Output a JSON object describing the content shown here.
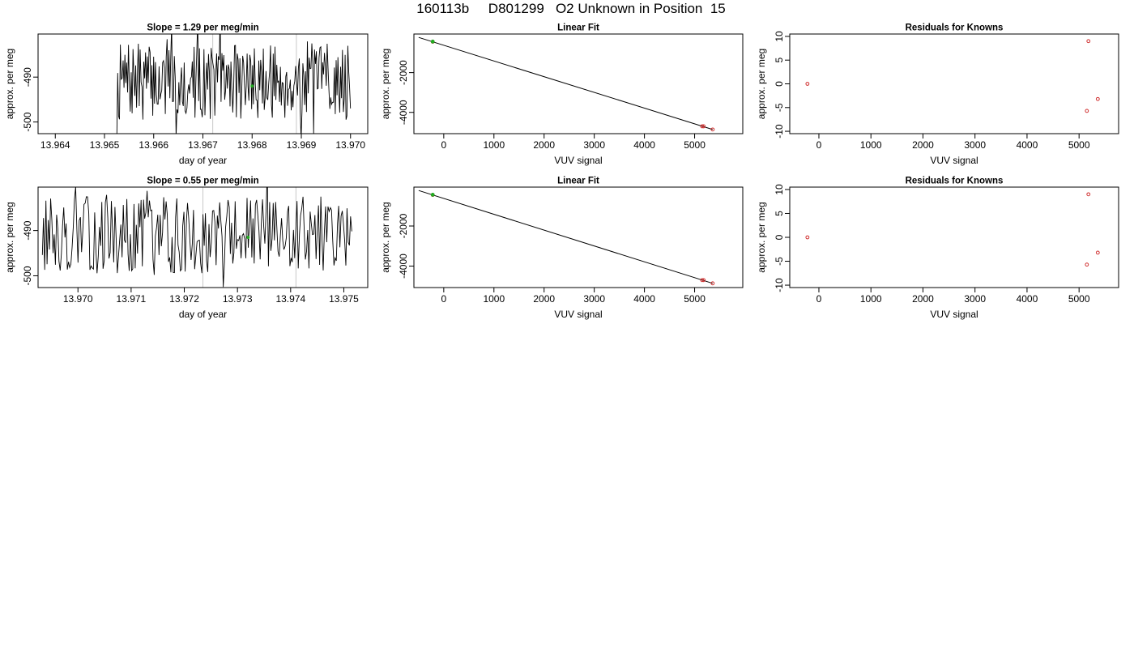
{
  "page_title": "160113b     D801299   O2 Unknown in Position  15",
  "chart_data": [
    {
      "type": "line",
      "title": "Slope =  1.29  per meg/min",
      "xlabel": "day of year",
      "ylabel": "approx. per meg",
      "xlim": [
        13.96365,
        13.97035
      ],
      "ylim": [
        -502.6,
        -480.4
      ],
      "xticks": [
        13.964,
        13.965,
        13.966,
        13.967,
        13.968,
        13.969,
        13.97
      ],
      "xtick_labels": [
        "13.964",
        "13.965",
        "13.966",
        "13.967",
        "13.968",
        "13.969",
        "13.970"
      ],
      "yticks": [
        -490,
        -500
      ],
      "ytick_labels": [
        "-490",
        "-500"
      ],
      "vlines": [
        13.9672,
        13.9689
      ],
      "trace_start": 13.96525,
      "trace_end": 13.97,
      "trace_seed": 7,
      "highlight_point": {
        "x": 13.968,
        "y": -492,
        "color": "#22aa22"
      }
    },
    {
      "type": "scatter",
      "title": "Linear Fit",
      "xlabel": "VUV signal",
      "ylabel": "approx. per meg",
      "xlim": [
        -595,
        5960
      ],
      "ylim": [
        -5070,
        -60
      ],
      "xticks": [
        0,
        1000,
        2000,
        3000,
        4000,
        5000
      ],
      "xtick_labels": [
        "0",
        "1000",
        "2000",
        "3000",
        "4000",
        "5000"
      ],
      "yticks": [
        -2000,
        -4000
      ],
      "ytick_labels": [
        "-2000",
        "-4000"
      ],
      "fit_line": {
        "x1": -500,
        "y1": -230,
        "x2": 5360,
        "y2": -4860
      },
      "points": [
        {
          "x": -220,
          "y": -450,
          "color": "#d03030"
        },
        {
          "x": 5150,
          "y": -4700,
          "color": "#d03030"
        },
        {
          "x": 5180,
          "y": -4700,
          "color": "#d03030"
        },
        {
          "x": 5360,
          "y": -4860,
          "color": "#d03030"
        },
        {
          "x": -220,
          "y": -440,
          "color": "#22aa22",
          "filled": true
        }
      ]
    },
    {
      "type": "scatter",
      "title": "Residuals for Knowns",
      "xlabel": "VUV signal",
      "ylabel": "approx. per meg",
      "xlim": [
        -560,
        5760
      ],
      "ylim": [
        -10.5,
        10.5
      ],
      "xticks": [
        0,
        1000,
        2000,
        3000,
        4000,
        5000
      ],
      "xtick_labels": [
        "0",
        "1000",
        "2000",
        "3000",
        "4000",
        "5000"
      ],
      "yticks": [
        10,
        5,
        0,
        -5,
        -10
      ],
      "ytick_labels": [
        "10",
        "5",
        "0",
        "-5",
        "-10"
      ],
      "points": [
        {
          "x": -220,
          "y": 0,
          "color": "#d03030"
        },
        {
          "x": 5180,
          "y": 9,
          "color": "#d03030"
        },
        {
          "x": 5150,
          "y": -5.7,
          "color": "#d03030"
        },
        {
          "x": 5360,
          "y": -3.2,
          "color": "#d03030"
        }
      ]
    },
    {
      "type": "line",
      "title": "Slope =  0.55  per meg/min",
      "xlabel": "day of year",
      "ylabel": "approx. per meg",
      "xlim": [
        13.96925,
        13.97545
      ],
      "ylim": [
        -502.6,
        -480.4
      ],
      "xticks": [
        13.97,
        13.971,
        13.972,
        13.973,
        13.974,
        13.975
      ],
      "xtick_labels": [
        "13.970",
        "13.971",
        "13.972",
        "13.973",
        "13.974",
        "13.975"
      ],
      "yticks": [
        -490,
        -500
      ],
      "ytick_labels": [
        "-490",
        "-500"
      ],
      "vlines": [
        13.97235,
        13.9741
      ],
      "trace_start": 13.96933,
      "trace_end": 13.97515,
      "trace_seed": 13,
      "highlight_point": {
        "x": 13.9732,
        "y": -491.5,
        "color": "#22aa22"
      }
    },
    {
      "type": "scatter",
      "title": "Linear Fit",
      "xlabel": "VUV signal",
      "ylabel": "approx. per meg",
      "xlim": [
        -595,
        5960
      ],
      "ylim": [
        -5070,
        -60
      ],
      "xticks": [
        0,
        1000,
        2000,
        3000,
        4000,
        5000
      ],
      "xtick_labels": [
        "0",
        "1000",
        "2000",
        "3000",
        "4000",
        "5000"
      ],
      "yticks": [
        -2000,
        -4000
      ],
      "ytick_labels": [
        "-2000",
        "-4000"
      ],
      "fit_line": {
        "x1": -500,
        "y1": -230,
        "x2": 5360,
        "y2": -4860
      },
      "points": [
        {
          "x": -220,
          "y": -450,
          "color": "#d03030"
        },
        {
          "x": 5150,
          "y": -4700,
          "color": "#d03030"
        },
        {
          "x": 5180,
          "y": -4700,
          "color": "#d03030"
        },
        {
          "x": 5360,
          "y": -4860,
          "color": "#d03030"
        },
        {
          "x": -220,
          "y": -440,
          "color": "#22aa22",
          "filled": true
        }
      ]
    },
    {
      "type": "scatter",
      "title": "Residuals for Knowns",
      "xlabel": "VUV signal",
      "ylabel": "approx. per meg",
      "xlim": [
        -560,
        5760
      ],
      "ylim": [
        -10.5,
        10.5
      ],
      "xticks": [
        0,
        1000,
        2000,
        3000,
        4000,
        5000
      ],
      "xtick_labels": [
        "0",
        "1000",
        "2000",
        "3000",
        "4000",
        "5000"
      ],
      "yticks": [
        10,
        5,
        0,
        -5,
        -10
      ],
      "ytick_labels": [
        "10",
        "5",
        "0",
        "-5",
        "-10"
      ],
      "points": [
        {
          "x": -220,
          "y": 0,
          "color": "#d03030"
        },
        {
          "x": 5180,
          "y": 9,
          "color": "#d03030"
        },
        {
          "x": 5150,
          "y": -5.7,
          "color": "#d03030"
        },
        {
          "x": 5360,
          "y": -3.2,
          "color": "#d03030"
        }
      ]
    }
  ]
}
